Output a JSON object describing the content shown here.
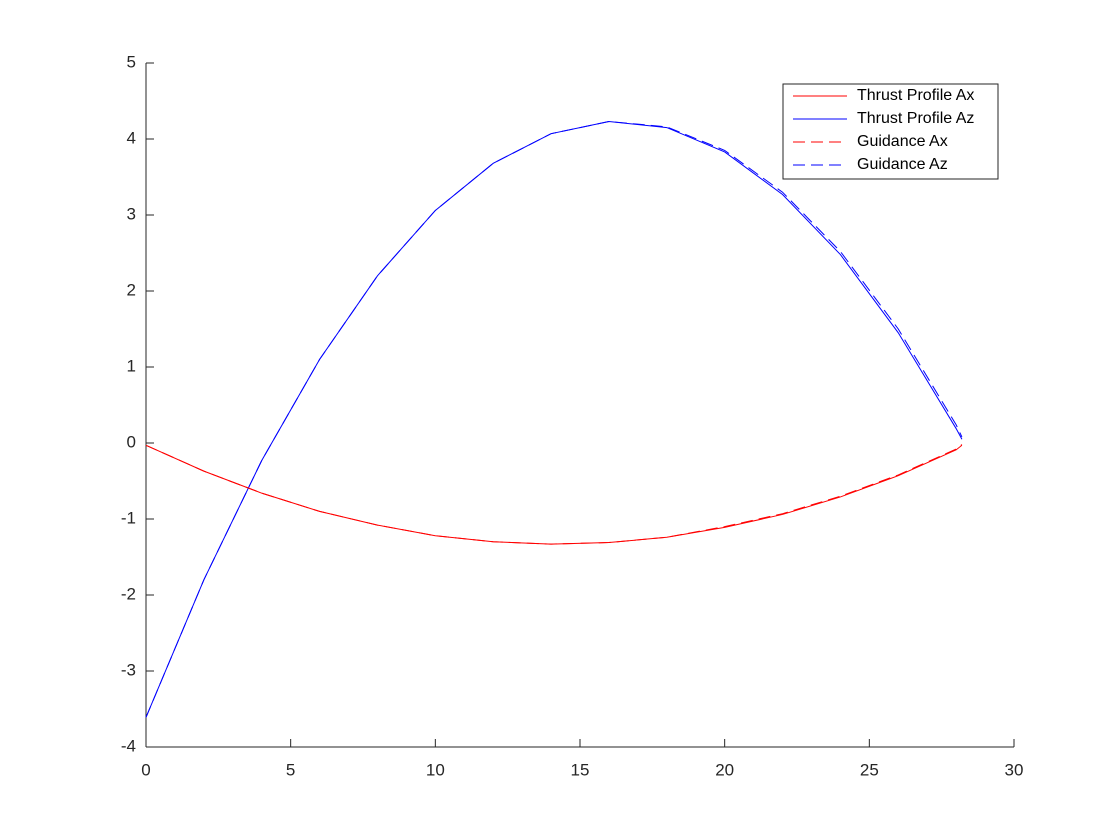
{
  "chart_data": {
    "type": "line",
    "x": [
      0,
      2,
      4,
      6,
      8,
      10,
      12,
      14,
      16,
      18,
      20,
      22,
      24,
      26,
      28,
      28.2
    ],
    "series": [
      {
        "name": "Thrust Profile Ax",
        "color": "#ff0000",
        "dash": "solid",
        "values": [
          -0.03,
          -0.37,
          -0.66,
          -0.9,
          -1.08,
          -1.22,
          -1.3,
          -1.33,
          -1.31,
          -1.24,
          -1.11,
          -0.94,
          -0.71,
          -0.43,
          -0.09,
          -0.03
        ]
      },
      {
        "name": "Thrust Profile Az",
        "color": "#0000ff",
        "dash": "solid",
        "values": [
          -3.61,
          -1.8,
          -0.23,
          1.1,
          2.2,
          3.06,
          3.68,
          4.07,
          4.23,
          4.15,
          3.83,
          3.27,
          2.48,
          1.45,
          0.19,
          0.05
        ]
      },
      {
        "name": "Guidance Ax",
        "color": "#ff0000",
        "dash": "dashed",
        "values": [
          -0.03,
          -0.37,
          -0.66,
          -0.9,
          -1.08,
          -1.22,
          -1.3,
          -1.33,
          -1.31,
          -1.24,
          -1.1,
          -0.93,
          -0.7,
          -0.42,
          -0.08,
          -0.02
        ]
      },
      {
        "name": "Guidance Az",
        "color": "#0000ff",
        "dash": "dashed",
        "values": [
          -3.61,
          -1.8,
          -0.23,
          1.1,
          2.2,
          3.06,
          3.68,
          4.07,
          4.23,
          4.16,
          3.85,
          3.3,
          2.52,
          1.5,
          0.24,
          0.08
        ]
      }
    ],
    "xlim": [
      0,
      30
    ],
    "xticks": [
      0,
      5,
      10,
      15,
      20,
      25,
      30
    ],
    "ylim": [
      -4,
      5
    ],
    "yticks": [
      -4,
      -3,
      -2,
      -1,
      0,
      1,
      2,
      3,
      4,
      5
    ],
    "grid": false,
    "legend": "northeast"
  }
}
